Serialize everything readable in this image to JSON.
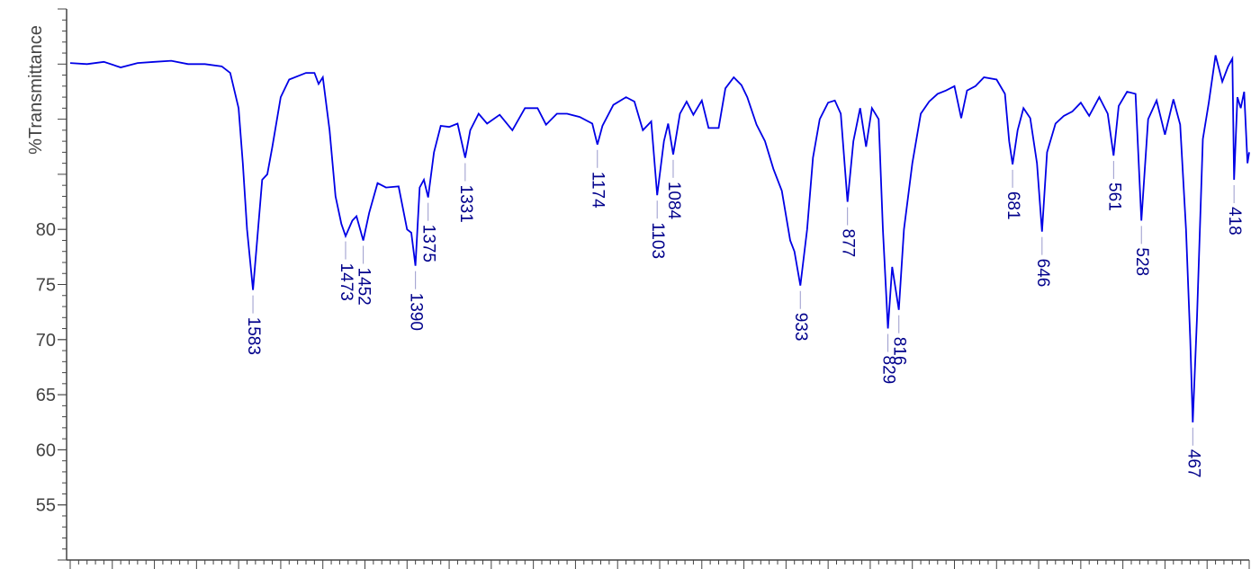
{
  "chart_data": {
    "type": "line",
    "ylabel": "%Transmittance",
    "color": "#0000e6",
    "label_color": "#00008b",
    "xlim": [
      1800,
      400
    ],
    "ylim": [
      50,
      100
    ],
    "yticks": [
      55,
      60,
      65,
      70,
      75,
      80
    ],
    "x": [
      1800,
      1780,
      1760,
      1740,
      1720,
      1700,
      1680,
      1660,
      1640,
      1620,
      1610,
      1600,
      1595,
      1590,
      1583,
      1578,
      1572,
      1566,
      1560,
      1550,
      1540,
      1520,
      1510,
      1505,
      1500,
      1492,
      1485,
      1478,
      1473,
      1465,
      1460,
      1452,
      1445,
      1435,
      1425,
      1410,
      1400,
      1395,
      1390,
      1385,
      1380,
      1375,
      1368,
      1360,
      1350,
      1340,
      1331,
      1325,
      1315,
      1305,
      1290,
      1275,
      1260,
      1245,
      1235,
      1222,
      1210,
      1195,
      1180,
      1174,
      1168,
      1155,
      1140,
      1130,
      1120,
      1110,
      1103,
      1095,
      1090,
      1084,
      1076,
      1068,
      1060,
      1050,
      1042,
      1030,
      1022,
      1012,
      1003,
      996,
      985,
      975,
      965,
      955,
      945,
      940,
      933,
      925,
      918,
      910,
      900,
      892,
      885,
      877,
      870,
      862,
      855,
      848,
      840,
      835,
      829,
      824,
      816,
      810,
      800,
      790,
      780,
      770,
      760,
      750,
      742,
      735,
      725,
      715,
      700,
      690,
      685,
      681,
      675,
      668,
      660,
      652,
      646,
      640,
      630,
      620,
      610,
      600,
      590,
      578,
      568,
      561,
      555,
      545,
      535,
      528,
      520,
      510,
      500,
      490,
      482,
      475,
      470,
      467,
      462,
      455,
      448,
      440,
      432,
      425,
      420,
      418,
      414,
      410,
      406,
      402,
      400
    ],
    "values": [
      95.1,
      95.0,
      95.2,
      94.7,
      95.1,
      95.2,
      95.3,
      95.0,
      95.0,
      94.8,
      94.2,
      91,
      86,
      80,
      74.5,
      79,
      84.5,
      85,
      87.5,
      92,
      93.6,
      94.2,
      94.2,
      93.2,
      93.8,
      89,
      83,
      80.5,
      79.4,
      80.8,
      81.2,
      79.0,
      81.5,
      84.2,
      83.8,
      83.9,
      80,
      79.7,
      76.7,
      83.8,
      84.5,
      82.9,
      87,
      89.4,
      89.3,
      89.6,
      86.5,
      89,
      90.5,
      89.6,
      90.4,
      89.0,
      91.0,
      91.0,
      89.5,
      90.5,
      90.5,
      90.2,
      89.6,
      87.7,
      89.4,
      91.3,
      92.0,
      91.6,
      89.0,
      89.8,
      83.1,
      88,
      89.6,
      86.8,
      90.5,
      91.6,
      90.4,
      91.7,
      89.2,
      89.2,
      92.8,
      93.8,
      93.1,
      92.0,
      89.5,
      88,
      85.5,
      83.5,
      79,
      78,
      74.9,
      80,
      86.5,
      90,
      91.5,
      91.7,
      90.5,
      82.5,
      88,
      91.0,
      87.5,
      91.0,
      90,
      80,
      71.0,
      76.6,
      72.7,
      80,
      86,
      90.5,
      91.6,
      92.3,
      92.6,
      93,
      90.1,
      92.6,
      93,
      93.8,
      93.6,
      92.3,
      88,
      85.9,
      89,
      91.0,
      90.1,
      86,
      79.8,
      87,
      89.6,
      90.3,
      90.7,
      91.5,
      90.3,
      92.0,
      90.5,
      86.7,
      91.2,
      92.5,
      92.3,
      80.8,
      90,
      91.7,
      88.6,
      91.8,
      89.5,
      80,
      70,
      62.5,
      72,
      88.2,
      91.5,
      95.8,
      93.4,
      94.8,
      95.5,
      84.5,
      92,
      91,
      92.5,
      86,
      87
    ],
    "peaks": [
      {
        "x": 1583,
        "value": 74.5
      },
      {
        "x": 1473,
        "value": 79.4
      },
      {
        "x": 1452,
        "value": 79.0
      },
      {
        "x": 1390,
        "value": 76.7
      },
      {
        "x": 1375,
        "value": 82.9
      },
      {
        "x": 1331,
        "value": 86.5
      },
      {
        "x": 1174,
        "value": 87.7
      },
      {
        "x": 1103,
        "value": 83.1
      },
      {
        "x": 1084,
        "value": 86.8
      },
      {
        "x": 933,
        "value": 74.9
      },
      {
        "x": 877,
        "value": 82.5
      },
      {
        "x": 829,
        "value": 71.0
      },
      {
        "x": 816,
        "value": 72.7
      },
      {
        "x": 681,
        "value": 85.9
      },
      {
        "x": 646,
        "value": 79.8
      },
      {
        "x": 561,
        "value": 86.7
      },
      {
        "x": 528,
        "value": 80.8
      },
      {
        "x": 467,
        "value": 62.5
      },
      {
        "x": 418,
        "value": 84.5
      }
    ]
  }
}
